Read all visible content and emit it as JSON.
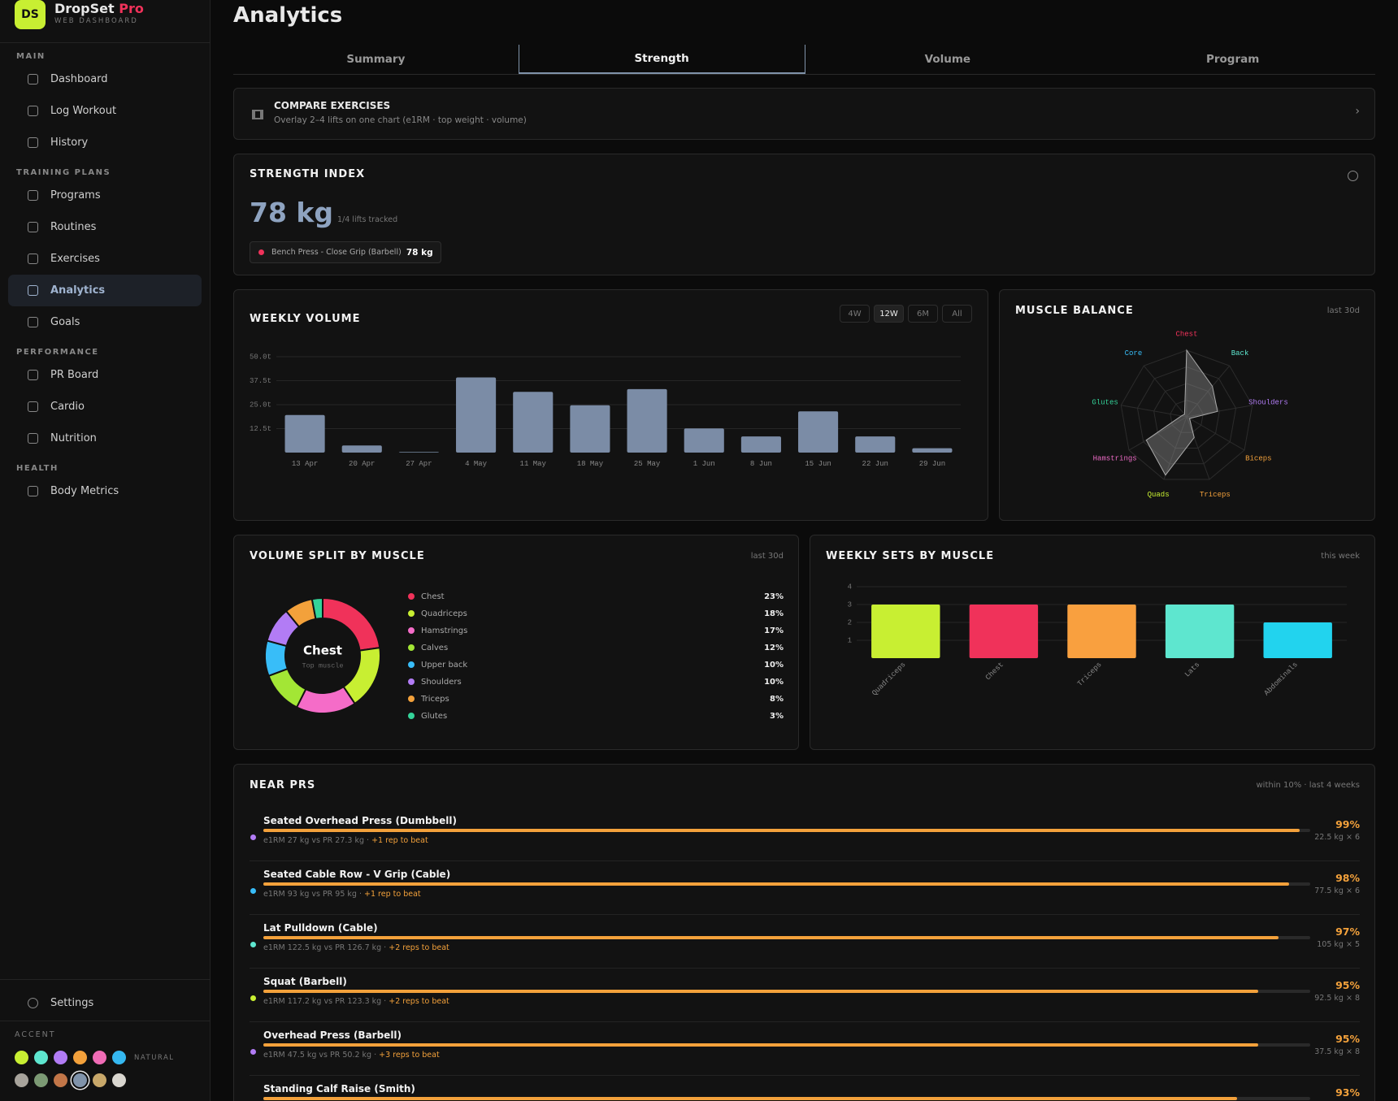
{
  "sidebar": {
    "logo": "DS",
    "brand": "DropSet",
    "brand_accent": "Pro",
    "tagline": "WEB DASHBOARD",
    "sections": [
      {
        "title": "MAIN",
        "items": [
          {
            "label": "Dashboard"
          },
          {
            "label": "Log Workout"
          },
          {
            "label": "History"
          }
        ]
      },
      {
        "title": "TRAINING PLANS",
        "items": [
          {
            "label": "Programs"
          },
          {
            "label": "Routines"
          },
          {
            "label": "Exercises"
          },
          {
            "label": "Analytics",
            "active": true
          },
          {
            "label": "Goals"
          }
        ]
      },
      {
        "title": "PERFORMANCE",
        "items": [
          {
            "label": "PR Board"
          },
          {
            "label": "Cardio"
          },
          {
            "label": "Nutrition"
          }
        ]
      },
      {
        "title": "HEALTH",
        "items": [
          {
            "label": "Body Metrics"
          }
        ]
      }
    ],
    "settings": "Settings",
    "accent": {
      "title": "ACCENT",
      "natural_label": "NATURAL",
      "bright": [
        {
          "color": "#c8ef32"
        },
        {
          "color": "#5ee6cf"
        },
        {
          "color": "#b27cf5"
        },
        {
          "color": "#f3a13b"
        },
        {
          "color": "#f06cb6"
        },
        {
          "color": "#35b8f0"
        }
      ],
      "natural": [
        {
          "color": "#a8a49c"
        },
        {
          "color": "#7c9a74"
        },
        {
          "color": "#c27648"
        },
        {
          "color": "#8093aa",
          "selected": true
        },
        {
          "color": "#c8a86a"
        },
        {
          "color": "#d9d6cf"
        }
      ]
    }
  },
  "header": {
    "title": "Analytics",
    "tabs": [
      {
        "label": "Summary"
      },
      {
        "label": "Strength",
        "active": true
      },
      {
        "label": "Volume"
      },
      {
        "label": "Program"
      }
    ]
  },
  "compare": {
    "title": "COMPARE EXERCISES",
    "subtitle": "Overlay 2–4 lifts on one chart (e1RM · top weight · volume)"
  },
  "strength_index": {
    "title": "STRENGTH INDEX",
    "value": "78 kg",
    "note": "1/4 lifts tracked",
    "chip": {
      "label": "Bench Press - Close Grip (Barbell)",
      "value": "78 kg",
      "color": "#f0325a"
    }
  },
  "weekly_volume": {
    "type": "bar",
    "title": "WEEKLY VOLUME",
    "ranges": [
      {
        "label": "4W"
      },
      {
        "label": "12W",
        "active": true
      },
      {
        "label": "6M"
      },
      {
        "label": "All"
      }
    ],
    "categories": [
      "13 Apr",
      "20 Apr",
      "27 Apr",
      "4 May",
      "11 May",
      "18 May",
      "25 May",
      "1 Jun",
      "8 Jun",
      "15 Jun",
      "22 Jun",
      "29 Jun"
    ],
    "values": [
      19.6,
      3.7,
      0.3,
      39.2,
      31.7,
      24.7,
      33.1,
      12.6,
      8.4,
      21.5,
      8.4,
      2.3
    ],
    "color": "#7b8ca6",
    "ylim": [
      0,
      50
    ],
    "yticks": [
      {
        "value": 12.5,
        "label": "12.5t"
      },
      {
        "value": 25,
        "label": "25.0t"
      },
      {
        "value": 37.5,
        "label": "37.5t"
      },
      {
        "value": 50,
        "label": "50.0t"
      }
    ],
    "grid": true
  },
  "muscle_balance": {
    "type": "radar",
    "title": "MUSCLE BALANCE",
    "note": "last 30d",
    "categories": [
      "Chest",
      "Back",
      "Shoulders",
      "Biceps",
      "Triceps",
      "Quads",
      "Hamstrings",
      "Glutes",
      "Core"
    ],
    "category_colors": [
      "#f0325a",
      "#5ee6cf",
      "#b27cf5",
      "#f3a13b",
      "#f3a13b",
      "#c8ef32",
      "#f06cc8",
      "#34d399",
      "#38bdf8"
    ],
    "values": [
      100,
      60,
      47,
      5,
      33,
      93,
      70,
      8,
      5
    ],
    "rlim": [
      0,
      100
    ],
    "rticks": [
      25,
      50,
      75,
      100
    ],
    "color": "#8a8a8a"
  },
  "volume_split": {
    "type": "donut",
    "title": "VOLUME SPLIT BY MUSCLE",
    "note": "last 30d",
    "center_label": "Chest",
    "center_sublabel": "Top muscle",
    "categories": [
      "Chest",
      "Quadriceps",
      "Hamstrings",
      "Calves",
      "Upper back",
      "Shoulders",
      "Triceps",
      "Glutes"
    ],
    "values": [
      23,
      18,
      17,
      12,
      10,
      10,
      8,
      3
    ],
    "value_labels": [
      "23%",
      "18%",
      "17%",
      "12%",
      "10%",
      "10%",
      "8%",
      "3%"
    ],
    "colors": [
      "#f0325a",
      "#c8ef32",
      "#f56cc8",
      "#a3e635",
      "#38bdf8",
      "#b27cf5",
      "#f3a13b",
      "#34d399"
    ]
  },
  "weekly_sets": {
    "type": "bar",
    "title": "WEEKLY SETS BY MUSCLE",
    "note": "this week",
    "categories": [
      "Quadriceps",
      "Chest",
      "Triceps",
      "Lats",
      "Abdominals"
    ],
    "values": [
      3,
      3,
      3,
      3,
      2
    ],
    "colors": [
      "#c8ef32",
      "#f0325a",
      "#f9a03f",
      "#5ee6cf",
      "#22d3ee"
    ],
    "ylim": [
      0,
      4
    ],
    "yticks": [
      1,
      2,
      3,
      4
    ],
    "grid": true
  },
  "near_prs": {
    "title": "NEAR PRS",
    "note": "within 10% · last 4 weeks",
    "items": [
      {
        "name": "Seated Overhead Press (Dumbbell)",
        "color": "#b27cf5",
        "detail": "e1RM 27 kg vs PR 27.3 kg ·",
        "beat": "+1 rep to beat",
        "percent": 99,
        "percent_label": "99%",
        "best": "22.5 kg × 6"
      },
      {
        "name": "Seated Cable Row - V Grip (Cable)",
        "color": "#38bdf8",
        "detail": "e1RM 93 kg vs PR 95 kg ·",
        "beat": "+1 rep to beat",
        "percent": 98,
        "percent_label": "98%",
        "best": "77.5 kg × 6"
      },
      {
        "name": "Lat Pulldown (Cable)",
        "color": "#5ee6cf",
        "detail": "e1RM 122.5 kg vs PR 126.7 kg ·",
        "beat": "+2 reps to beat",
        "percent": 97,
        "percent_label": "97%",
        "best": "105 kg × 5"
      },
      {
        "name": "Squat (Barbell)",
        "color": "#c8ef32",
        "detail": "e1RM 117.2 kg vs PR 123.3 kg ·",
        "beat": "+2 reps to beat",
        "percent": 95,
        "percent_label": "95%",
        "best": "92.5 kg × 8"
      },
      {
        "name": "Overhead Press (Barbell)",
        "color": "#b27cf5",
        "detail": "e1RM 47.5 kg vs PR 50.2 kg ·",
        "beat": "+3 reps to beat",
        "percent": 95,
        "percent_label": "95%",
        "best": "37.5 kg × 8"
      },
      {
        "name": "Standing Calf Raise (Smith)",
        "color": "#c8ef32",
        "percent": 93,
        "percent_label": "93%"
      }
    ]
  }
}
